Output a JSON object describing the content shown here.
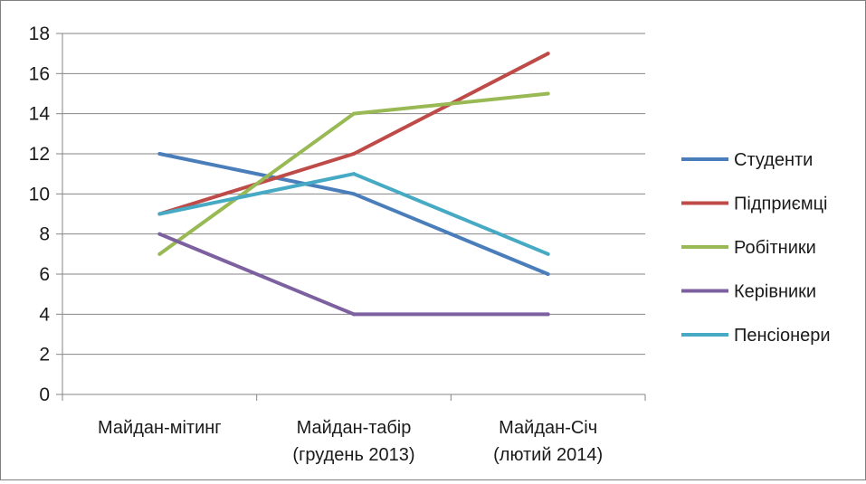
{
  "chart_data": {
    "type": "line",
    "title": "",
    "xlabel": "",
    "ylabel": "",
    "categories": [
      [
        "Майдан-мітинг"
      ],
      [
        "Майдан-табір",
        "(грудень 2013)"
      ],
      [
        "Майдан-Січ",
        "(лютий 2014)"
      ]
    ],
    "ylim": [
      0,
      18
    ],
    "yticks": [
      0,
      2,
      4,
      6,
      8,
      10,
      12,
      14,
      16,
      18
    ],
    "grid": true,
    "legend_position": "right",
    "series": [
      {
        "name": "Студенти",
        "color": "#4a7ebb",
        "values": [
          12,
          10,
          6
        ]
      },
      {
        "name": "Підприємці",
        "color": "#be4b48",
        "values": [
          9,
          12,
          17
        ]
      },
      {
        "name": "Робітники",
        "color": "#98b954",
        "values": [
          7,
          14,
          15
        ]
      },
      {
        "name": "Керівники",
        "color": "#7d60a0",
        "values": [
          8,
          4,
          4
        ]
      },
      {
        "name": "Пенсіонери",
        "color": "#46aac5",
        "values": [
          9,
          11,
          7
        ]
      }
    ]
  }
}
